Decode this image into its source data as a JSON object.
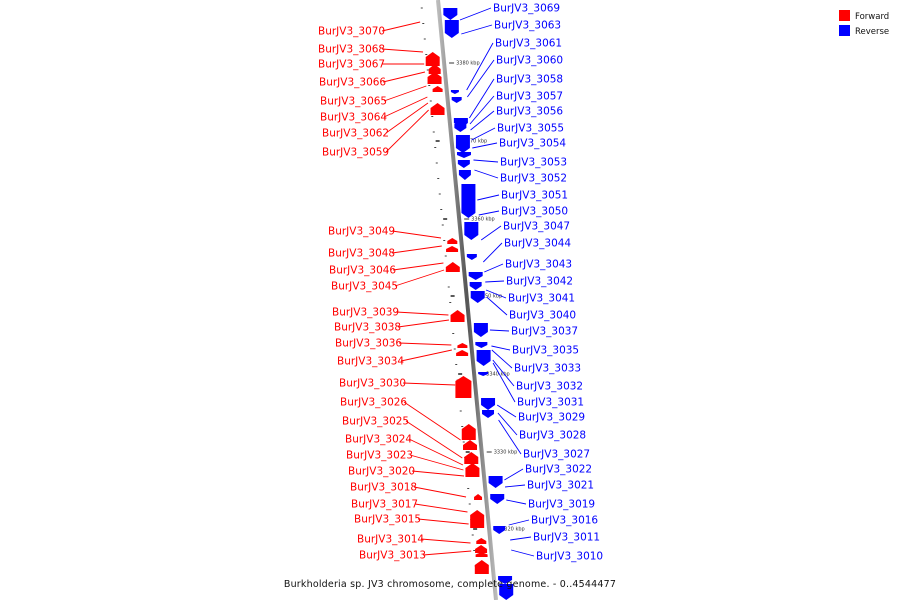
{
  "colors": {
    "forward": "#ff0000",
    "reverse": "#0000ff",
    "backbone": "#888888"
  },
  "legend": [
    {
      "label": "Forward",
      "strand": "forward"
    },
    {
      "label": "Reverse",
      "strand": "reverse"
    }
  ],
  "caption": "Burkholderia sp. JV3 chromosome, complete genome. - 0..4544477",
  "scale_ticks": [
    "3380 kbp",
    "3370 kbp",
    "3360 kbp",
    "3350 kbp",
    "3340 kbp",
    "3330 kbp",
    "3320 kbp"
  ],
  "genes_forward": [
    "BurJV3_3070",
    "BurJV3_3068",
    "BurJV3_3067",
    "BurJV3_3066",
    "BurJV3_3065",
    "BurJV3_3064",
    "BurJV3_3062",
    "BurJV3_3059",
    "BurJV3_3049",
    "BurJV3_3048",
    "BurJV3_3046",
    "BurJV3_3045",
    "BurJV3_3039",
    "BurJV3_3038",
    "BurJV3_3036",
    "BurJV3_3034",
    "BurJV3_3030",
    "BurJV3_3026",
    "BurJV3_3025",
    "BurJV3_3024",
    "BurJV3_3023",
    "BurJV3_3020",
    "BurJV3_3018",
    "BurJV3_3017",
    "BurJV3_3015",
    "BurJV3_3014",
    "BurJV3_3013"
  ],
  "genes_reverse": [
    "BurJV3_3069",
    "BurJV3_3063",
    "BurJV3_3061",
    "BurJV3_3060",
    "BurJV3_3058",
    "BurJV3_3057",
    "BurJV3_3056",
    "BurJV3_3055",
    "BurJV3_3054",
    "BurJV3_3053",
    "BurJV3_3052",
    "BurJV3_3051",
    "BurJV3_3050",
    "BurJV3_3047",
    "BurJV3_3044",
    "BurJV3_3043",
    "BurJV3_3042",
    "BurJV3_3041",
    "BurJV3_3040",
    "BurJV3_3037",
    "BurJV3_3035",
    "BurJV3_3033",
    "BurJV3_3032",
    "BurJV3_3031",
    "BurJV3_3029",
    "BurJV3_3028",
    "BurJV3_3027",
    "BurJV3_3022",
    "BurJV3_3021",
    "BurJV3_3019",
    "BurJV3_3016",
    "BurJV3_3011",
    "BurJV3_3010"
  ]
}
